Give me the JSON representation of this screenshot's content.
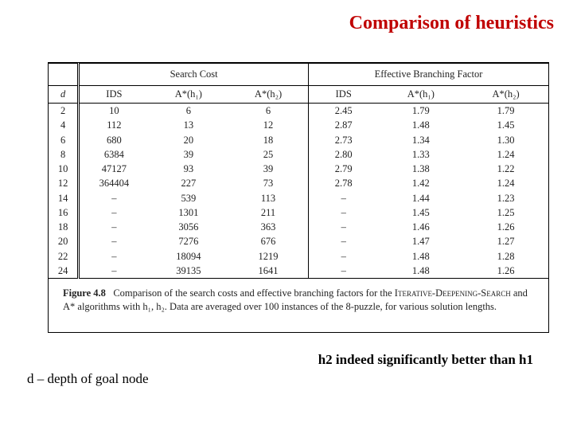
{
  "title": "Comparison of heuristics",
  "table": {
    "section_headers": [
      "Search Cost",
      "Effective Branching Factor"
    ],
    "sub_headers": {
      "d": "d",
      "ids": "IDS",
      "ah1": "A*(h₁)",
      "ah2": "A*(h₂)"
    },
    "rows": [
      {
        "d": "2",
        "sc_ids": "10",
        "sc_h1": "6",
        "sc_h2": "6",
        "bf_ids": "2.45",
        "bf_h1": "1.79",
        "bf_h2": "1.79"
      },
      {
        "d": "4",
        "sc_ids": "112",
        "sc_h1": "13",
        "sc_h2": "12",
        "bf_ids": "2.87",
        "bf_h1": "1.48",
        "bf_h2": "1.45"
      },
      {
        "d": "6",
        "sc_ids": "680",
        "sc_h1": "20",
        "sc_h2": "18",
        "bf_ids": "2.73",
        "bf_h1": "1.34",
        "bf_h2": "1.30"
      },
      {
        "d": "8",
        "sc_ids": "6384",
        "sc_h1": "39",
        "sc_h2": "25",
        "bf_ids": "2.80",
        "bf_h1": "1.33",
        "bf_h2": "1.24"
      },
      {
        "d": "10",
        "sc_ids": "47127",
        "sc_h1": "93",
        "sc_h2": "39",
        "bf_ids": "2.79",
        "bf_h1": "1.38",
        "bf_h2": "1.22"
      },
      {
        "d": "12",
        "sc_ids": "364404",
        "sc_h1": "227",
        "sc_h2": "73",
        "bf_ids": "2.78",
        "bf_h1": "1.42",
        "bf_h2": "1.24"
      },
      {
        "d": "14",
        "sc_ids": "–",
        "sc_h1": "539",
        "sc_h2": "113",
        "bf_ids": "–",
        "bf_h1": "1.44",
        "bf_h2": "1.23"
      },
      {
        "d": "16",
        "sc_ids": "–",
        "sc_h1": "1301",
        "sc_h2": "211",
        "bf_ids": "–",
        "bf_h1": "1.45",
        "bf_h2": "1.25"
      },
      {
        "d": "18",
        "sc_ids": "–",
        "sc_h1": "3056",
        "sc_h2": "363",
        "bf_ids": "–",
        "bf_h1": "1.46",
        "bf_h2": "1.26"
      },
      {
        "d": "20",
        "sc_ids": "–",
        "sc_h1": "7276",
        "sc_h2": "676",
        "bf_ids": "–",
        "bf_h1": "1.47",
        "bf_h2": "1.27"
      },
      {
        "d": "22",
        "sc_ids": "–",
        "sc_h1": "18094",
        "sc_h2": "1219",
        "bf_ids": "–",
        "bf_h1": "1.48",
        "bf_h2": "1.28"
      },
      {
        "d": "24",
        "sc_ids": "–",
        "sc_h1": "39135",
        "sc_h2": "1641",
        "bf_ids": "–",
        "bf_h1": "1.48",
        "bf_h2": "1.26"
      }
    ]
  },
  "caption": {
    "fignum": "Figure 4.8",
    "body_a": "Comparison of the search costs and effective branching factors for the ",
    "algo": "Iterative-Deepening-Search",
    "body_b": " and A* algorithms with h₁, h₂. Data are averaged over 100 instances of the 8-puzzle, for various solution lengths."
  },
  "footnote_left": "d – depth of goal node",
  "footnote_right": "h2 indeed significantly better than h1",
  "colors": {
    "title": "#c00000",
    "text": "#000000",
    "border": "#000000",
    "background": "#ffffff"
  },
  "fonts": {
    "title_size_pt": 24,
    "body_size_pt": 17,
    "table_size_pt": 12.5,
    "family": "Times New Roman"
  }
}
